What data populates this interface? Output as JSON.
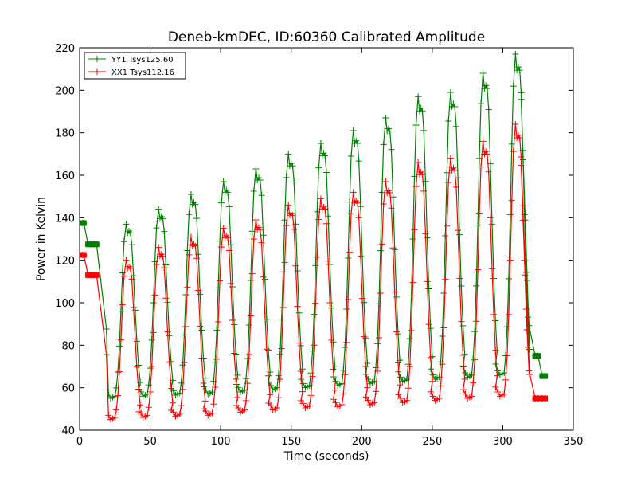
{
  "chart_data": {
    "type": "line",
    "title": "Deneb-kmDEC, ID:60360 Calibrated Amplitude",
    "xlabel": "Time (seconds)",
    "ylabel": "Power in Kelvin",
    "xlim": [
      0,
      350
    ],
    "ylim": [
      40,
      220
    ],
    "xticks": [
      0,
      50,
      100,
      150,
      200,
      250,
      300,
      350
    ],
    "yticks": [
      40,
      60,
      80,
      100,
      120,
      140,
      160,
      180,
      200,
      220
    ],
    "grid": false,
    "legend_position": "top-left",
    "series": [
      {
        "name": "YY1 Tsys125.60",
        "color": "#008000",
        "marker": "+",
        "plateaus": [
          {
            "x": [
              2,
              3
            ],
            "y": [
              137.5,
              137.5
            ]
          },
          {
            "x": [
              6,
              8,
              10,
              12
            ],
            "y": [
              127.5,
              127.5,
              127.5,
              127.5
            ]
          },
          {
            "x": [
              323,
              325
            ],
            "y": [
              75,
              75
            ]
          },
          {
            "x": [
              328,
              330
            ],
            "y": [
              65.5,
              65.5
            ]
          }
        ],
        "peaks": [
          {
            "x": 33,
            "y": 137
          },
          {
            "x": 56,
            "y": 144
          },
          {
            "x": 79,
            "y": 151
          },
          {
            "x": 102,
            "y": 157
          },
          {
            "x": 125,
            "y": 163
          },
          {
            "x": 148,
            "y": 170
          },
          {
            "x": 171,
            "y": 175
          },
          {
            "x": 194,
            "y": 181
          },
          {
            "x": 217,
            "y": 187
          },
          {
            "x": 240,
            "y": 197
          },
          {
            "x": 263,
            "y": 199
          },
          {
            "x": 286,
            "y": 208
          },
          {
            "x": 309,
            "y": 217
          }
        ],
        "troughs": [
          {
            "x": 22,
            "y": 55
          },
          {
            "x": 45,
            "y": 56
          },
          {
            "x": 68,
            "y": 56.5
          },
          {
            "x": 91,
            "y": 57
          },
          {
            "x": 114,
            "y": 58
          },
          {
            "x": 137,
            "y": 59
          },
          {
            "x": 160,
            "y": 60
          },
          {
            "x": 183,
            "y": 61
          },
          {
            "x": 206,
            "y": 62
          },
          {
            "x": 229,
            "y": 63
          },
          {
            "x": 252,
            "y": 64
          },
          {
            "x": 275,
            "y": 65
          },
          {
            "x": 298,
            "y": 66
          }
        ]
      },
      {
        "name": "XX1 Tsys112.16",
        "color": "#ff0000",
        "marker": "+",
        "plateaus": [
          {
            "x": [
              2,
              3
            ],
            "y": [
              122.5,
              122.5
            ]
          },
          {
            "x": [
              6,
              8,
              10,
              12
            ],
            "y": [
              113,
              113,
              113,
              113
            ]
          },
          {
            "x": [
              323,
              325
            ],
            "y": [
              55,
              55
            ]
          },
          {
            "x": [
              328,
              330
            ],
            "y": [
              55,
              55
            ]
          }
        ],
        "peaks": [
          {
            "x": 33,
            "y": 120
          },
          {
            "x": 56,
            "y": 126
          },
          {
            "x": 79,
            "y": 131
          },
          {
            "x": 102,
            "y": 135
          },
          {
            "x": 125,
            "y": 139
          },
          {
            "x": 148,
            "y": 146
          },
          {
            "x": 171,
            "y": 149
          },
          {
            "x": 194,
            "y": 152
          },
          {
            "x": 217,
            "y": 157
          },
          {
            "x": 240,
            "y": 166
          },
          {
            "x": 263,
            "y": 168
          },
          {
            "x": 286,
            "y": 176
          },
          {
            "x": 309,
            "y": 184
          }
        ],
        "troughs": [
          {
            "x": 22,
            "y": 45
          },
          {
            "x": 45,
            "y": 46
          },
          {
            "x": 68,
            "y": 46.5
          },
          {
            "x": 91,
            "y": 47
          },
          {
            "x": 114,
            "y": 48.5
          },
          {
            "x": 137,
            "y": 49.5
          },
          {
            "x": 160,
            "y": 50.5
          },
          {
            "x": 183,
            "y": 51
          },
          {
            "x": 206,
            "y": 52
          },
          {
            "x": 229,
            "y": 53
          },
          {
            "x": 252,
            "y": 54
          },
          {
            "x": 275,
            "y": 55
          },
          {
            "x": 298,
            "y": 56
          }
        ]
      }
    ]
  }
}
